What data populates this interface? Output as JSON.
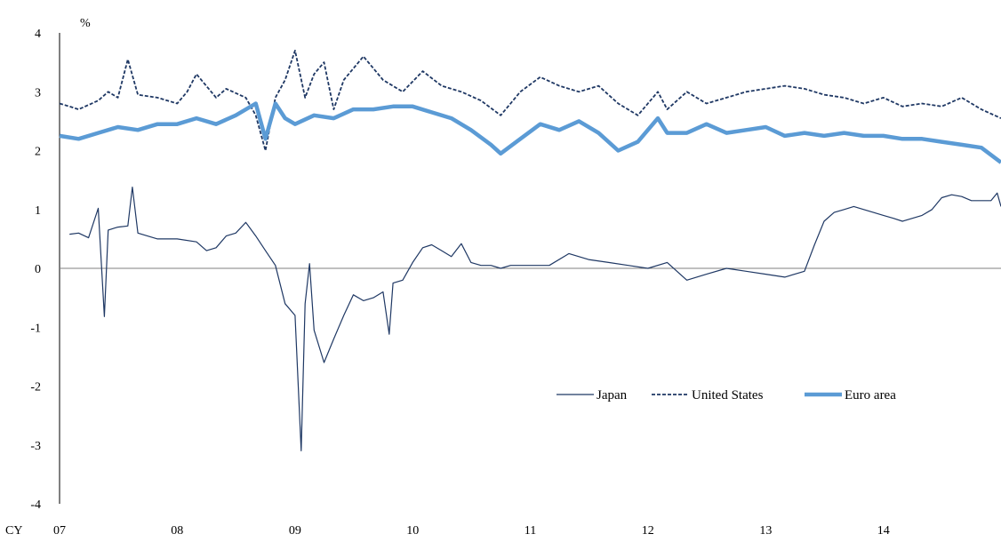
{
  "chart_data": {
    "type": "line",
    "ylabel": "%",
    "x_prefix": "CY",
    "xlim": [
      "2007-01",
      "2015-01"
    ],
    "x_ticks": [
      "07",
      "08",
      "09",
      "10",
      "11",
      "12",
      "13",
      "14"
    ],
    "ylim": [
      -4,
      4
    ],
    "y_ticks": [
      "4",
      "3",
      "2",
      "1",
      "0",
      "-1",
      "-2",
      "-3",
      "-4"
    ],
    "zero_line": true,
    "grid": false,
    "legend_position": "lower-right",
    "series": [
      {
        "name": "Japan",
        "style": "solid-thin",
        "color": "#1f3864",
        "points": [
          [
            "2007-02",
            0.58
          ],
          [
            "2007-03",
            0.6
          ],
          [
            "2007-04",
            0.52
          ],
          [
            "2007-05",
            1.02
          ],
          [
            "2007-05-20",
            -0.82
          ],
          [
            "2007-06",
            0.65
          ],
          [
            "2007-07",
            0.7
          ],
          [
            "2007-08",
            0.72
          ],
          [
            "2007-08-15",
            1.38
          ],
          [
            "2007-09",
            0.6
          ],
          [
            "2007-10",
            0.55
          ],
          [
            "2007-11",
            0.5
          ],
          [
            "2008-01",
            0.5
          ],
          [
            "2008-03",
            0.45
          ],
          [
            "2008-04",
            0.3
          ],
          [
            "2008-05",
            0.35
          ],
          [
            "2008-06",
            0.55
          ],
          [
            "2008-07",
            0.6
          ],
          [
            "2008-08",
            0.78
          ],
          [
            "2008-09",
            0.55
          ],
          [
            "2008-10",
            0.3
          ],
          [
            "2008-11",
            0.05
          ],
          [
            "2008-12",
            -0.6
          ],
          [
            "2009-01",
            -0.8
          ],
          [
            "2009-01-20",
            -3.1
          ],
          [
            "2009-02",
            -0.6
          ],
          [
            "2009-02-15",
            0.08
          ],
          [
            "2009-03",
            -1.05
          ],
          [
            "2009-04",
            -1.6
          ],
          [
            "2009-05",
            -1.2
          ],
          [
            "2009-06",
            -0.8
          ],
          [
            "2009-07",
            -0.45
          ],
          [
            "2009-08",
            -0.55
          ],
          [
            "2009-09",
            -0.5
          ],
          [
            "2009-10",
            -0.4
          ],
          [
            "2009-10-20",
            -1.12
          ],
          [
            "2009-11",
            -0.25
          ],
          [
            "2009-12",
            -0.2
          ],
          [
            "2010-01",
            0.1
          ],
          [
            "2010-02",
            0.35
          ],
          [
            "2010-03",
            0.4
          ],
          [
            "2010-04",
            0.3
          ],
          [
            "2010-05",
            0.2
          ],
          [
            "2010-06",
            0.42
          ],
          [
            "2010-07",
            0.1
          ],
          [
            "2010-08",
            0.05
          ],
          [
            "2010-09",
            0.05
          ],
          [
            "2010-10",
            0.0
          ],
          [
            "2010-11",
            0.05
          ],
          [
            "2011-01",
            0.05
          ],
          [
            "2011-03",
            0.05
          ],
          [
            "2011-05",
            0.25
          ],
          [
            "2011-07",
            0.15
          ],
          [
            "2011-09",
            0.1
          ],
          [
            "2011-11",
            0.05
          ],
          [
            "2012-01",
            0.0
          ],
          [
            "2012-03",
            0.1
          ],
          [
            "2012-05",
            -0.2
          ],
          [
            "2012-07",
            -0.1
          ],
          [
            "2012-09",
            0.0
          ],
          [
            "2012-11",
            -0.05
          ],
          [
            "2013-01",
            -0.1
          ],
          [
            "2013-03",
            -0.15
          ],
          [
            "2013-05",
            -0.05
          ],
          [
            "2013-06",
            0.4
          ],
          [
            "2013-07",
            0.8
          ],
          [
            "2013-08",
            0.95
          ],
          [
            "2013-09",
            1.0
          ],
          [
            "2013-10",
            1.05
          ],
          [
            "2013-11",
            1.0
          ],
          [
            "2013-12",
            0.95
          ],
          [
            "2014-01",
            0.9
          ],
          [
            "2014-02",
            0.85
          ],
          [
            "2014-03",
            0.8
          ],
          [
            "2014-04",
            0.85
          ],
          [
            "2014-05",
            0.9
          ],
          [
            "2014-06",
            1.0
          ],
          [
            "2014-07",
            1.2
          ],
          [
            "2014-08",
            1.25
          ],
          [
            "2014-09",
            1.22
          ],
          [
            "2014-10",
            1.15
          ],
          [
            "2014-11",
            1.15
          ],
          [
            "2014-12",
            1.15
          ],
          [
            "2014-12-20",
            1.28
          ],
          [
            "2015-01",
            1.05
          ]
        ]
      },
      {
        "name": "United States",
        "style": "dashed",
        "color": "#1f3864",
        "points": [
          [
            "2007-01",
            2.8
          ],
          [
            "2007-02",
            2.75
          ],
          [
            "2007-03",
            2.7
          ],
          [
            "2007-05",
            2.85
          ],
          [
            "2007-06",
            3.0
          ],
          [
            "2007-07",
            2.9
          ],
          [
            "2007-08",
            3.55
          ],
          [
            "2007-09",
            2.95
          ],
          [
            "2007-11",
            2.9
          ],
          [
            "2008-01",
            2.8
          ],
          [
            "2008-02",
            3.0
          ],
          [
            "2008-03",
            3.3
          ],
          [
            "2008-05",
            2.9
          ],
          [
            "2008-06",
            3.05
          ],
          [
            "2008-08",
            2.9
          ],
          [
            "2008-09",
            2.6
          ],
          [
            "2008-10",
            2.0
          ],
          [
            "2008-11",
            2.9
          ],
          [
            "2008-12",
            3.2
          ],
          [
            "2009-01",
            3.7
          ],
          [
            "2009-02",
            2.9
          ],
          [
            "2009-03",
            3.3
          ],
          [
            "2009-04",
            3.5
          ],
          [
            "2009-05",
            2.7
          ],
          [
            "2009-06",
            3.2
          ],
          [
            "2009-08",
            3.6
          ],
          [
            "2009-10",
            3.2
          ],
          [
            "2009-12",
            3.0
          ],
          [
            "2010-02",
            3.35
          ],
          [
            "2010-04",
            3.1
          ],
          [
            "2010-06",
            3.0
          ],
          [
            "2010-08",
            2.85
          ],
          [
            "2010-10",
            2.6
          ],
          [
            "2010-12",
            3.0
          ],
          [
            "2011-02",
            3.25
          ],
          [
            "2011-04",
            3.1
          ],
          [
            "2011-06",
            3.0
          ],
          [
            "2011-08",
            3.1
          ],
          [
            "2011-10",
            2.8
          ],
          [
            "2011-12",
            2.6
          ],
          [
            "2012-02",
            3.0
          ],
          [
            "2012-03",
            2.7
          ],
          [
            "2012-05",
            3.0
          ],
          [
            "2012-07",
            2.8
          ],
          [
            "2012-09",
            2.9
          ],
          [
            "2012-11",
            3.0
          ],
          [
            "2013-01",
            3.05
          ],
          [
            "2013-03",
            3.1
          ],
          [
            "2013-05",
            3.05
          ],
          [
            "2013-07",
            2.95
          ],
          [
            "2013-09",
            2.9
          ],
          [
            "2013-11",
            2.8
          ],
          [
            "2014-01",
            2.9
          ],
          [
            "2014-03",
            2.75
          ],
          [
            "2014-05",
            2.8
          ],
          [
            "2014-07",
            2.75
          ],
          [
            "2014-09",
            2.9
          ],
          [
            "2014-11",
            2.7
          ],
          [
            "2015-01",
            2.55
          ]
        ]
      },
      {
        "name": "Euro area",
        "style": "solid-thick",
        "color": "#5b9bd5",
        "points": [
          [
            "2007-01",
            2.25
          ],
          [
            "2007-03",
            2.2
          ],
          [
            "2007-05",
            2.3
          ],
          [
            "2007-07",
            2.4
          ],
          [
            "2007-09",
            2.35
          ],
          [
            "2007-11",
            2.45
          ],
          [
            "2008-01",
            2.45
          ],
          [
            "2008-03",
            2.55
          ],
          [
            "2008-05",
            2.45
          ],
          [
            "2008-07",
            2.6
          ],
          [
            "2008-09",
            2.8
          ],
          [
            "2008-10",
            2.2
          ],
          [
            "2008-11",
            2.8
          ],
          [
            "2008-12",
            2.55
          ],
          [
            "2009-01",
            2.45
          ],
          [
            "2009-03",
            2.6
          ],
          [
            "2009-05",
            2.55
          ],
          [
            "2009-07",
            2.7
          ],
          [
            "2009-09",
            2.7
          ],
          [
            "2009-11",
            2.75
          ],
          [
            "2010-01",
            2.75
          ],
          [
            "2010-03",
            2.65
          ],
          [
            "2010-05",
            2.55
          ],
          [
            "2010-07",
            2.35
          ],
          [
            "2010-09",
            2.1
          ],
          [
            "2010-10",
            1.95
          ],
          [
            "2010-12",
            2.2
          ],
          [
            "2011-02",
            2.45
          ],
          [
            "2011-04",
            2.35
          ],
          [
            "2011-06",
            2.5
          ],
          [
            "2011-08",
            2.3
          ],
          [
            "2011-10",
            2.0
          ],
          [
            "2011-12",
            2.15
          ],
          [
            "2012-02",
            2.55
          ],
          [
            "2012-03",
            2.3
          ],
          [
            "2012-05",
            2.3
          ],
          [
            "2012-07",
            2.45
          ],
          [
            "2012-09",
            2.3
          ],
          [
            "2012-11",
            2.35
          ],
          [
            "2013-01",
            2.4
          ],
          [
            "2013-03",
            2.25
          ],
          [
            "2013-05",
            2.3
          ],
          [
            "2013-07",
            2.25
          ],
          [
            "2013-09",
            2.3
          ],
          [
            "2013-11",
            2.25
          ],
          [
            "2014-01",
            2.25
          ],
          [
            "2014-03",
            2.2
          ],
          [
            "2014-05",
            2.2
          ],
          [
            "2014-07",
            2.15
          ],
          [
            "2014-09",
            2.1
          ],
          [
            "2014-11",
            2.05
          ],
          [
            "2015-01",
            1.8
          ]
        ]
      }
    ]
  }
}
